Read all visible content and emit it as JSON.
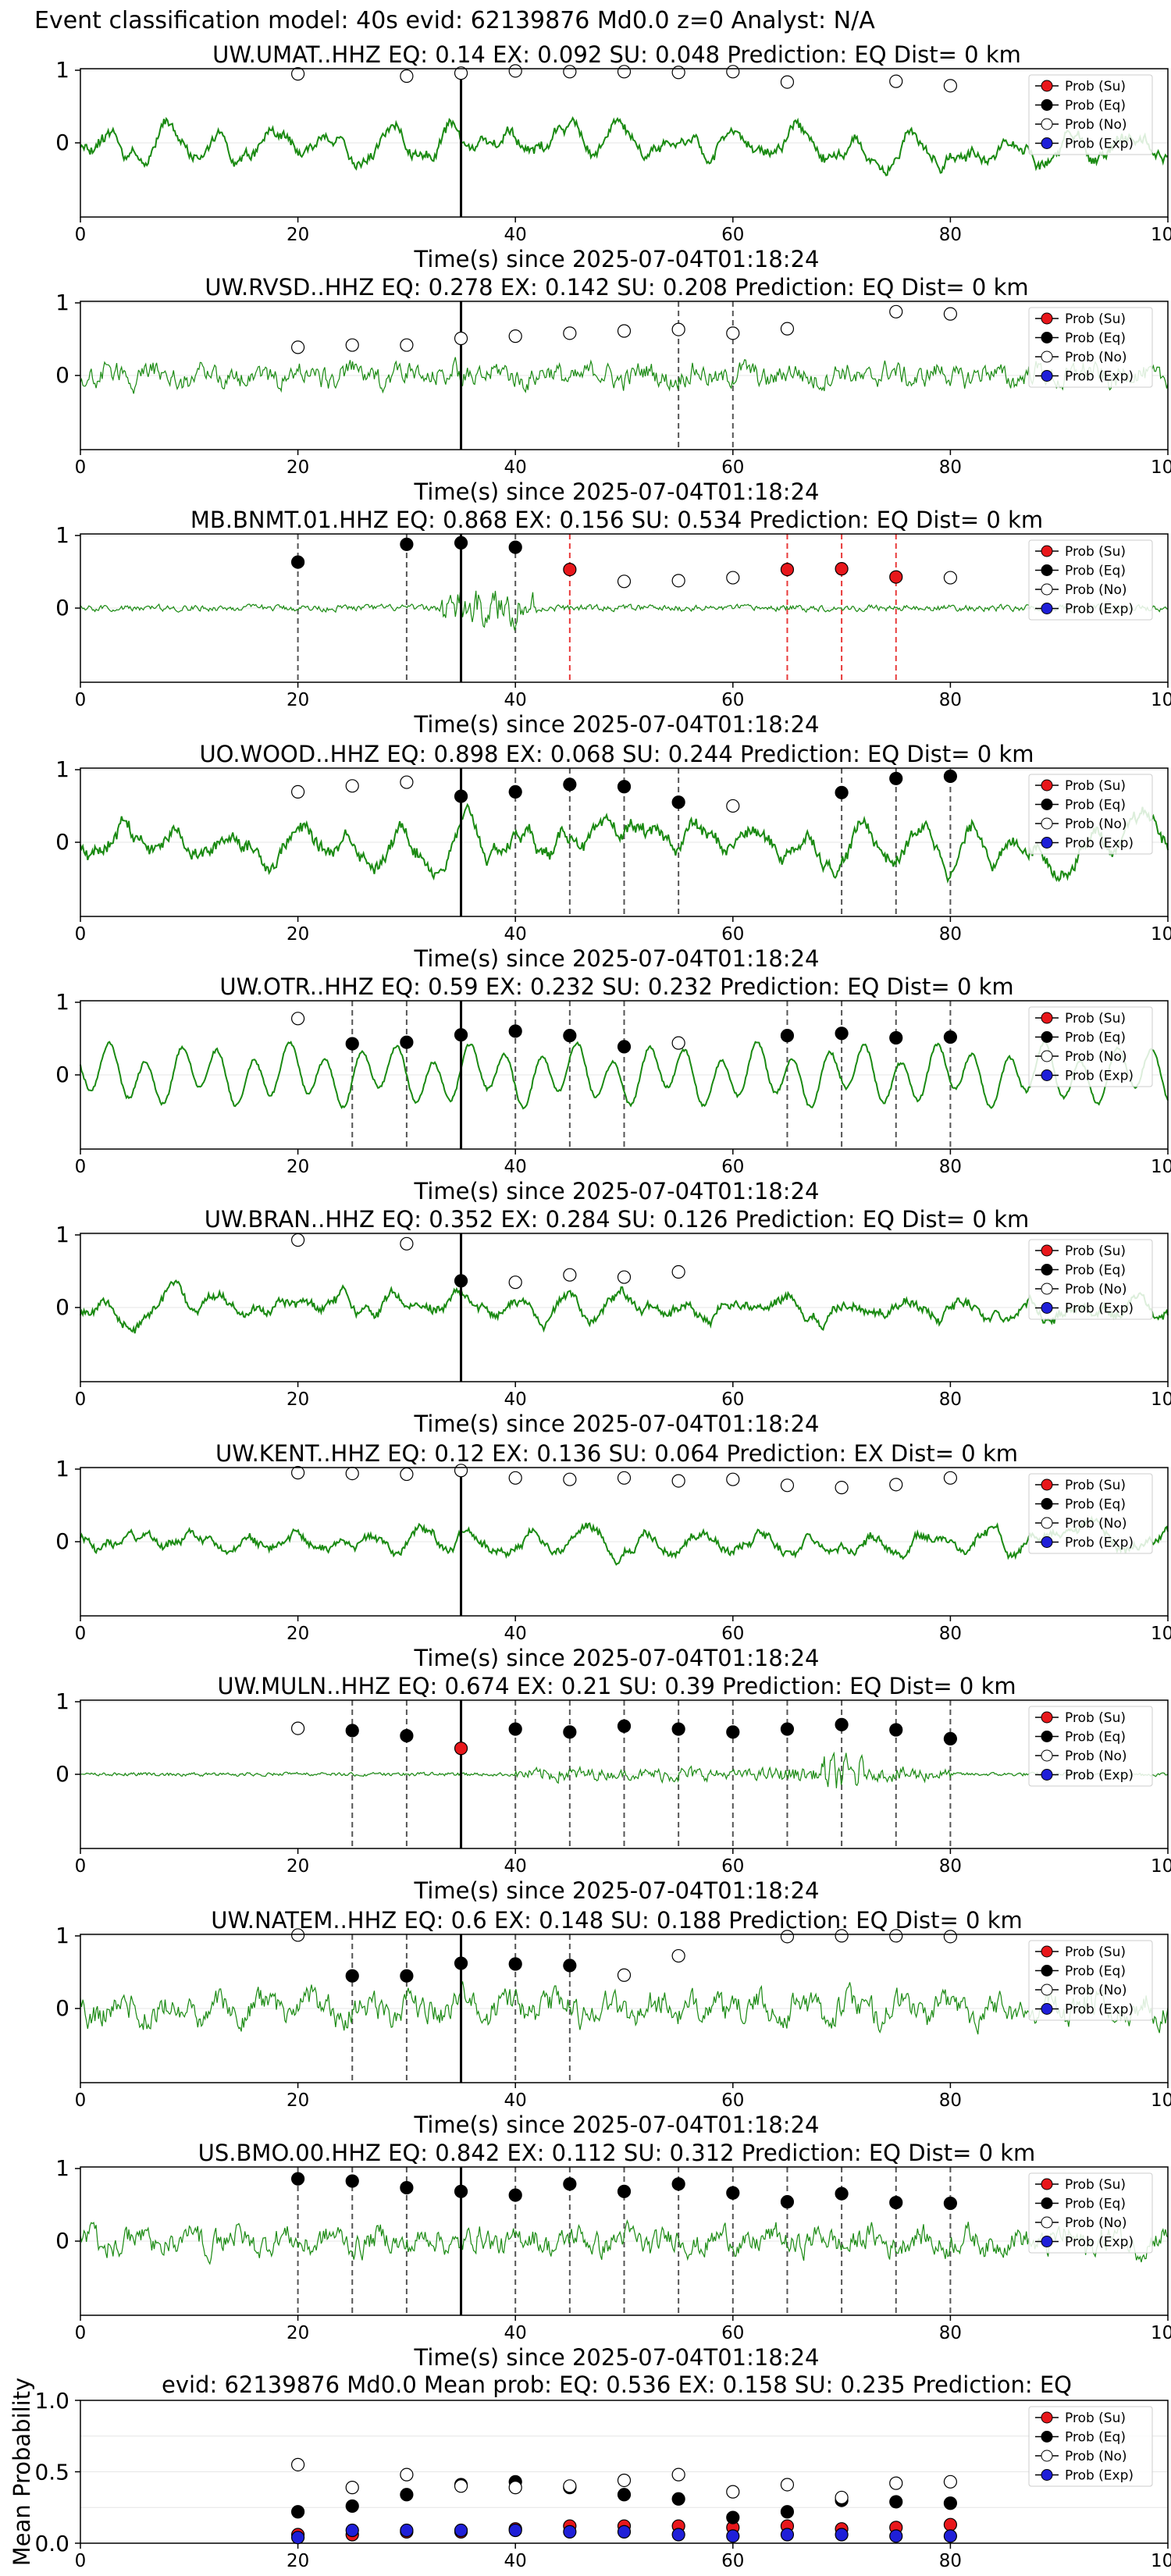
{
  "suptitle": "Event classification model: 40s evid: 62139876 Md0.0 z=0 Analyst: N/A",
  "time_label": "Time(s) since 2025-07-04T01:18:24",
  "legend": [
    "Prob (Su)",
    "Prob (Eq)",
    "Prob (No)",
    "Prob (Exp)"
  ],
  "colors": {
    "su": "#e8171b",
    "eq": "#000000",
    "no": "#ffffff",
    "exp": "#1f1fd8",
    "trace": "#1a8a12",
    "dashed_su": "#e83a3a",
    "dashed_eq": "#555555"
  },
  "chart_data": [
    {
      "type": "line",
      "station": "UW.UMAT..HHZ",
      "title": "UW.UMAT..HHZ   EQ: 0.14   EX: 0.092   SU: 0.048   Prediction: EQ    Dist= 0 km",
      "xlim": [
        0,
        100
      ],
      "yticks": [
        "1",
        "0"
      ],
      "xticks": [
        "0",
        "20",
        "40",
        "60",
        "80",
        "100"
      ],
      "p_marker": 35,
      "trace": {
        "amp": 0.38,
        "style": "smooth",
        "seed": 11
      },
      "windows": [
        [
          20,
          "no",
          0.93,
          false
        ],
        [
          30,
          "no",
          0.9,
          false
        ],
        [
          35,
          "no",
          0.94,
          false
        ],
        [
          40,
          "no",
          0.97,
          false
        ],
        [
          45,
          "no",
          0.96,
          false
        ],
        [
          50,
          "no",
          0.96,
          false
        ],
        [
          55,
          "no",
          0.95,
          false
        ],
        [
          60,
          "no",
          0.96,
          false
        ],
        [
          65,
          "no",
          0.82,
          false
        ],
        [
          75,
          "no",
          0.83,
          false
        ],
        [
          80,
          "no",
          0.77,
          false
        ]
      ]
    },
    {
      "type": "line",
      "station": "UW.RVSD..HHZ",
      "title": "UW.RVSD..HHZ   EQ: 0.278   EX: 0.142   SU: 0.208   Prediction: EQ    Dist= 0 km",
      "xlim": [
        0,
        100
      ],
      "yticks": [
        "1",
        "0"
      ],
      "xticks": [
        "0",
        "20",
        "40",
        "60",
        "80",
        "100"
      ],
      "p_marker": 35,
      "trace": {
        "amp": 0.35,
        "style": "noisy",
        "seed": 23
      },
      "windows": [
        [
          20,
          "no",
          0.38,
          false
        ],
        [
          25,
          "no",
          0.41,
          false
        ],
        [
          30,
          "no",
          0.41,
          false
        ],
        [
          35,
          "no",
          0.5,
          false
        ],
        [
          40,
          "no",
          0.53,
          false
        ],
        [
          45,
          "no",
          0.57,
          false
        ],
        [
          50,
          "no",
          0.6,
          false
        ],
        [
          55,
          "no",
          0.62,
          true
        ],
        [
          60,
          "no",
          0.57,
          true
        ],
        [
          65,
          "no",
          0.63,
          false
        ],
        [
          75,
          "no",
          0.86,
          false
        ],
        [
          80,
          "no",
          0.83,
          false
        ]
      ]
    },
    {
      "type": "line",
      "station": "MB.BNMT.01.HHZ",
      "title": "MB.BNMT.01.HHZ   EQ: 0.868   EX: 0.156   SU: 0.534   Prediction: EQ    Dist= 0 km",
      "xlim": [
        0,
        100
      ],
      "yticks": [
        "1",
        "0"
      ],
      "xticks": [
        "0",
        "20",
        "40",
        "60",
        "80",
        "100"
      ],
      "p_marker": 35,
      "trace": {
        "amp": 0.28,
        "style": "burst",
        "seed": 31
      },
      "windows": [
        [
          20,
          "eq",
          0.62,
          true
        ],
        [
          30,
          "eq",
          0.86,
          true
        ],
        [
          35,
          "eq",
          0.88,
          true
        ],
        [
          40,
          "eq",
          0.82,
          true
        ],
        [
          45,
          "su",
          0.52,
          true
        ],
        [
          50,
          "no",
          0.36,
          false
        ],
        [
          55,
          "no",
          0.37,
          false
        ],
        [
          60,
          "no",
          0.41,
          false
        ],
        [
          65,
          "su",
          0.52,
          true
        ],
        [
          70,
          "su",
          0.53,
          true
        ],
        [
          75,
          "su",
          0.42,
          true
        ],
        [
          80,
          "no",
          0.41,
          false
        ]
      ]
    },
    {
      "type": "line",
      "station": "UO.WOOD..HHZ",
      "title": "UO.WOOD..HHZ   EQ: 0.898   EX: 0.068   SU: 0.244   Prediction: EQ    Dist= 0 km",
      "xlim": [
        0,
        100
      ],
      "yticks": [
        "1",
        "0"
      ],
      "xticks": [
        "0",
        "20",
        "40",
        "60",
        "80",
        "100"
      ],
      "p_marker": 35,
      "trace": {
        "amp": 0.45,
        "style": "smooth",
        "seed": 47
      },
      "windows": [
        [
          20,
          "no",
          0.68,
          false
        ],
        [
          25,
          "no",
          0.76,
          false
        ],
        [
          30,
          "no",
          0.81,
          false
        ],
        [
          35,
          "eq",
          0.62,
          true
        ],
        [
          40,
          "eq",
          0.68,
          true
        ],
        [
          45,
          "eq",
          0.78,
          true
        ],
        [
          50,
          "eq",
          0.75,
          true
        ],
        [
          55,
          "eq",
          0.54,
          true
        ],
        [
          60,
          "no",
          0.49,
          false
        ],
        [
          70,
          "eq",
          0.67,
          true
        ],
        [
          75,
          "eq",
          0.86,
          true
        ],
        [
          80,
          "eq",
          0.89,
          true
        ]
      ]
    },
    {
      "type": "line",
      "station": "UW.OTR..HHZ",
      "title": "UW.OTR..HHZ   EQ: 0.59   EX: 0.232   SU: 0.232   Prediction: EQ    Dist= 0 km",
      "xlim": [
        0,
        100
      ],
      "yticks": [
        "1",
        "0"
      ],
      "xticks": [
        "0",
        "20",
        "40",
        "60",
        "80",
        "100"
      ],
      "p_marker": 35,
      "trace": {
        "amp": 0.55,
        "style": "wave",
        "seed": 53
      },
      "windows": [
        [
          20,
          "no",
          0.76,
          false
        ],
        [
          25,
          "eq",
          0.42,
          true
        ],
        [
          30,
          "eq",
          0.44,
          true
        ],
        [
          35,
          "eq",
          0.54,
          true
        ],
        [
          40,
          "eq",
          0.59,
          true
        ],
        [
          45,
          "eq",
          0.53,
          true
        ],
        [
          50,
          "eq",
          0.38,
          true
        ],
        [
          55,
          "no",
          0.43,
          false
        ],
        [
          65,
          "eq",
          0.53,
          true
        ],
        [
          70,
          "eq",
          0.56,
          true
        ],
        [
          75,
          "eq",
          0.5,
          true
        ],
        [
          80,
          "eq",
          0.51,
          true
        ]
      ]
    },
    {
      "type": "line",
      "station": "UW.BRAN..HHZ",
      "title": "UW.BRAN..HHZ   EQ: 0.352   EX: 0.284   SU: 0.126   Prediction: EQ    Dist= 0 km",
      "xlim": [
        0,
        100
      ],
      "yticks": [
        "1",
        "0"
      ],
      "xticks": [
        "0",
        "20",
        "40",
        "60",
        "80",
        "100"
      ],
      "p_marker": 35,
      "trace": {
        "amp": 0.33,
        "style": "smooth",
        "seed": 61
      },
      "windows": [
        [
          20,
          "no",
          0.91,
          false
        ],
        [
          30,
          "no",
          0.86,
          false
        ],
        [
          35,
          "eq",
          0.36,
          false
        ],
        [
          40,
          "no",
          0.34,
          false
        ],
        [
          45,
          "no",
          0.44,
          false
        ],
        [
          50,
          "no",
          0.41,
          false
        ],
        [
          55,
          "no",
          0.48,
          false
        ]
      ]
    },
    {
      "type": "line",
      "station": "UW.KENT..HHZ",
      "title": "UW.KENT..HHZ   EQ: 0.12  EX: 0.136  SU: 0.064   Prediction: EX    Dist= 0 km",
      "xlim": [
        0,
        100
      ],
      "yticks": [
        "1",
        "0"
      ],
      "xticks": [
        "0",
        "20",
        "40",
        "60",
        "80",
        "100"
      ],
      "p_marker": 35,
      "trace": {
        "amp": 0.3,
        "style": "smooth",
        "seed": 71
      },
      "windows": [
        [
          20,
          "no",
          0.93,
          false
        ],
        [
          25,
          "no",
          0.92,
          false
        ],
        [
          30,
          "no",
          0.91,
          false
        ],
        [
          35,
          "no",
          0.96,
          false
        ],
        [
          40,
          "no",
          0.86,
          false
        ],
        [
          45,
          "no",
          0.84,
          false
        ],
        [
          50,
          "no",
          0.86,
          false
        ],
        [
          55,
          "no",
          0.82,
          false
        ],
        [
          60,
          "no",
          0.84,
          false
        ],
        [
          65,
          "no",
          0.76,
          false
        ],
        [
          70,
          "no",
          0.73,
          false
        ],
        [
          75,
          "no",
          0.77,
          false
        ],
        [
          80,
          "no",
          0.86,
          false
        ]
      ]
    },
    {
      "type": "line",
      "station": "UW.MULN..HHZ",
      "title": "UW.MULN..HHZ   EQ: 0.674   EX: 0.21   SU: 0.39    Prediction: EQ    Dist= 0 km",
      "xlim": [
        0,
        100
      ],
      "yticks": [
        "1",
        "0"
      ],
      "xticks": [
        "0",
        "20",
        "40",
        "60",
        "80",
        "100"
      ],
      "p_marker": 35,
      "trace": {
        "amp": 0.12,
        "style": "burst2",
        "seed": 83
      },
      "windows": [
        [
          20,
          "no",
          0.62,
          false
        ],
        [
          25,
          "eq",
          0.59,
          true
        ],
        [
          30,
          "eq",
          0.52,
          true
        ],
        [
          35,
          "su",
          0.35,
          false
        ],
        [
          40,
          "eq",
          0.61,
          true
        ],
        [
          45,
          "eq",
          0.57,
          true
        ],
        [
          50,
          "eq",
          0.65,
          true
        ],
        [
          55,
          "eq",
          0.61,
          true
        ],
        [
          60,
          "eq",
          0.57,
          true
        ],
        [
          65,
          "eq",
          0.61,
          true
        ],
        [
          70,
          "eq",
          0.67,
          true
        ],
        [
          75,
          "eq",
          0.6,
          true
        ],
        [
          80,
          "eq",
          0.48,
          true
        ]
      ]
    },
    {
      "type": "line",
      "station": "UW.NATEM..HHZ",
      "title": "UW.NATEM..HHZ   EQ: 0.6   EX: 0.148   SU: 0.188   Prediction: EQ    Dist= 0 km",
      "xlim": [
        0,
        100
      ],
      "yticks": [
        "1",
        "0"
      ],
      "xticks": [
        "0",
        "20",
        "40",
        "60",
        "80",
        "100"
      ],
      "p_marker": 35,
      "trace": {
        "amp": 0.45,
        "style": "noisy2",
        "seed": 97
      },
      "windows": [
        [
          20,
          "no",
          0.99,
          false
        ],
        [
          25,
          "eq",
          0.44,
          true
        ],
        [
          30,
          "eq",
          0.44,
          true
        ],
        [
          35,
          "eq",
          0.61,
          true
        ],
        [
          40,
          "eq",
          0.6,
          true
        ],
        [
          45,
          "eq",
          0.58,
          true
        ],
        [
          50,
          "no",
          0.45,
          false
        ],
        [
          55,
          "no",
          0.71,
          false
        ],
        [
          65,
          "no",
          0.97,
          false
        ],
        [
          70,
          "no",
          0.98,
          false
        ],
        [
          75,
          "no",
          0.98,
          false
        ],
        [
          80,
          "no",
          0.97,
          false
        ]
      ]
    },
    {
      "type": "line",
      "station": "US.BMO.00.HHZ",
      "title": "US.BMO.00.HHZ   EQ: 0.842   EX: 0.112   SU: 0.312   Prediction: EQ    Dist= 0 km",
      "xlim": [
        0,
        100
      ],
      "yticks": [
        "1",
        "0"
      ],
      "xticks": [
        "0",
        "20",
        "40",
        "60",
        "80",
        "100"
      ],
      "p_marker": 35,
      "trace": {
        "amp": 0.4,
        "style": "noisy3",
        "seed": 101
      },
      "windows": [
        [
          20,
          "eq",
          0.84,
          true
        ],
        [
          25,
          "eq",
          0.81,
          true
        ],
        [
          30,
          "eq",
          0.72,
          true
        ],
        [
          35,
          "eq",
          0.67,
          true
        ],
        [
          40,
          "eq",
          0.62,
          true
        ],
        [
          45,
          "eq",
          0.77,
          true
        ],
        [
          50,
          "eq",
          0.67,
          true
        ],
        [
          55,
          "eq",
          0.77,
          true
        ],
        [
          60,
          "eq",
          0.65,
          true
        ],
        [
          65,
          "eq",
          0.53,
          true
        ],
        [
          70,
          "eq",
          0.64,
          true
        ],
        [
          75,
          "eq",
          0.52,
          true
        ],
        [
          80,
          "eq",
          0.51,
          true
        ]
      ]
    },
    {
      "type": "scatter",
      "title": "evid: 62139876  Md0.0   Mean prob:   EQ: 0.536  EX: 0.158  SU: 0.235   Prediction: EQ",
      "ylabel": "Mean Probability",
      "xlim": [
        0,
        100
      ],
      "ylim": [
        0,
        1
      ],
      "yticks": [
        "1.0",
        "0.5",
        "0.0"
      ],
      "xticks": [
        "0",
        "20",
        "40",
        "60",
        "80",
        "100"
      ],
      "x": [
        20,
        25,
        30,
        35,
        40,
        45,
        50,
        55,
        60,
        65,
        70,
        75,
        80
      ],
      "series": [
        {
          "name": "Prob (Su)",
          "key": "su",
          "values": [
            0.06,
            0.06,
            0.08,
            0.08,
            0.1,
            0.12,
            0.12,
            0.12,
            0.11,
            0.12,
            0.1,
            0.11,
            0.13
          ]
        },
        {
          "name": "Prob (Eq)",
          "key": "eq",
          "values": [
            0.22,
            0.26,
            0.34,
            0.41,
            0.43,
            0.39,
            0.34,
            0.31,
            0.18,
            0.22,
            0.3,
            0.29,
            0.28
          ]
        },
        {
          "name": "Prob (No)",
          "key": "no",
          "values": [
            0.55,
            0.39,
            0.48,
            0.4,
            0.39,
            0.4,
            0.44,
            0.48,
            0.36,
            0.41,
            0.32,
            0.42,
            0.43
          ]
        },
        {
          "name": "Prob (Exp)",
          "key": "exp",
          "values": [
            0.04,
            0.09,
            0.09,
            0.09,
            0.09,
            0.08,
            0.08,
            0.06,
            0.05,
            0.06,
            0.06,
            0.05,
            0.05
          ]
        }
      ]
    }
  ]
}
